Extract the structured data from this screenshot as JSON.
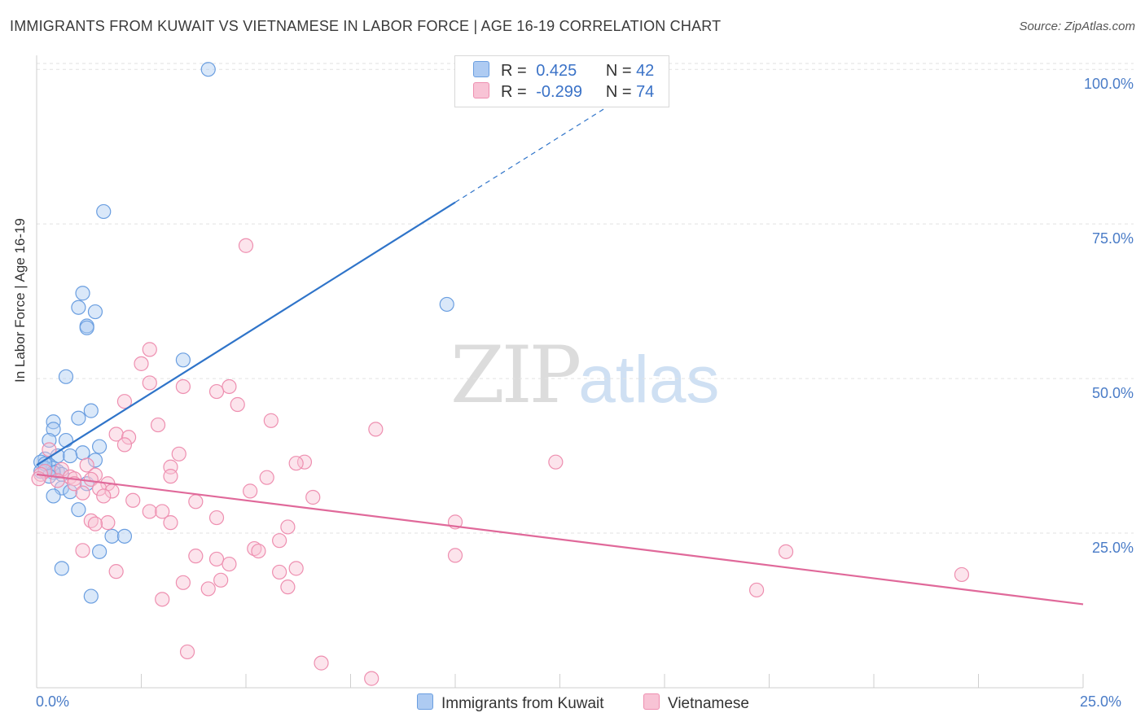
{
  "title": "IMMIGRANTS FROM KUWAIT VS VIETNAMESE IN LABOR FORCE | AGE 16-19 CORRELATION CHART",
  "source": "Source: ZipAtlas.com",
  "watermark": {
    "zip": "ZIP",
    "atlas": "atlas"
  },
  "colors": {
    "blue": "#6a9ee0",
    "blue_fill": "#aecbf2",
    "blue_line": "#2f74c9",
    "pink": "#ee8fb0",
    "pink_fill": "#f8c3d5",
    "pink_line": "#e0699a"
  },
  "legend": {
    "series1": {
      "r_label": "R =",
      "r_value": "0.425",
      "n_label": "N =",
      "n_value": "42"
    },
    "series2": {
      "r_label": "R =",
      "r_value": "-0.299",
      "n_label": "N =",
      "n_value": "74"
    }
  },
  "bottom_legend": {
    "series1": "Immigrants from Kuwait",
    "series2": "Vietnamese"
  },
  "chart_data": {
    "type": "scatter",
    "xlabel": "",
    "ylabel": "In Labor Force | Age 16-19",
    "xlim": [
      0,
      25
    ],
    "ylim": [
      0,
      102
    ],
    "x_ticks": [
      "0.0%",
      "25.0%"
    ],
    "y_ticks": [
      {
        "value": 100,
        "label": "100.0%"
      },
      {
        "value": 75,
        "label": "75.0%"
      },
      {
        "value": 50,
        "label": "50.0%"
      },
      {
        "value": 25,
        "label": "25.0%"
      }
    ],
    "grid": true,
    "series": [
      {
        "name": "Immigrants from Kuwait",
        "r": 0.425,
        "n": 42,
        "trend": {
          "x": [
            0.0,
            10.0
          ],
          "y": [
            36.0,
            78.5
          ],
          "dashed_to": [
            14.0,
            95.5
          ]
        },
        "points": [
          [
            4.1,
            100.0
          ],
          [
            1.6,
            77.0
          ],
          [
            9.8,
            62.0
          ],
          [
            1.1,
            63.8
          ],
          [
            1.0,
            61.5
          ],
          [
            1.4,
            60.8
          ],
          [
            1.2,
            58.5
          ],
          [
            1.2,
            58.2
          ],
          [
            3.5,
            53.0
          ],
          [
            0.7,
            50.3
          ],
          [
            1.3,
            44.8
          ],
          [
            1.0,
            43.6
          ],
          [
            0.4,
            43.0
          ],
          [
            0.4,
            41.8
          ],
          [
            0.3,
            40.0
          ],
          [
            0.7,
            40.0
          ],
          [
            1.5,
            39.0
          ],
          [
            0.5,
            37.5
          ],
          [
            1.1,
            38.0
          ],
          [
            0.8,
            37.5
          ],
          [
            1.4,
            36.8
          ],
          [
            0.2,
            37.0
          ],
          [
            0.1,
            36.5
          ],
          [
            0.3,
            36.0
          ],
          [
            0.4,
            35.5
          ],
          [
            0.1,
            35.0
          ],
          [
            0.2,
            35.5
          ],
          [
            0.5,
            35.0
          ],
          [
            0.6,
            34.5
          ],
          [
            0.4,
            34.8
          ],
          [
            1.2,
            33.0
          ],
          [
            0.6,
            32.3
          ],
          [
            0.8,
            31.7
          ],
          [
            0.4,
            31.0
          ],
          [
            1.0,
            28.8
          ],
          [
            1.8,
            24.5
          ],
          [
            2.1,
            24.5
          ],
          [
            1.5,
            22.0
          ],
          [
            0.6,
            19.3
          ],
          [
            1.3,
            14.8
          ],
          [
            0.2,
            36.2
          ],
          [
            0.3,
            34.2
          ]
        ]
      },
      {
        "name": "Vietnamese",
        "r": -0.299,
        "n": 74,
        "trend": {
          "x": [
            0.0,
            25.0
          ],
          "y": [
            34.5,
            13.5
          ]
        },
        "points": [
          [
            5.0,
            71.5
          ],
          [
            2.7,
            54.7
          ],
          [
            2.5,
            52.4
          ],
          [
            2.7,
            49.3
          ],
          [
            3.5,
            48.7
          ],
          [
            4.6,
            48.7
          ],
          [
            4.3,
            47.9
          ],
          [
            2.1,
            46.3
          ],
          [
            4.8,
            45.8
          ],
          [
            5.6,
            43.2
          ],
          [
            2.9,
            42.5
          ],
          [
            8.1,
            41.8
          ],
          [
            1.9,
            41.0
          ],
          [
            2.2,
            40.5
          ],
          [
            2.1,
            39.3
          ],
          [
            0.3,
            38.5
          ],
          [
            3.4,
            37.8
          ],
          [
            6.4,
            36.5
          ],
          [
            6.2,
            36.3
          ],
          [
            12.4,
            36.5
          ],
          [
            1.2,
            36.0
          ],
          [
            3.2,
            35.7
          ],
          [
            0.6,
            35.3
          ],
          [
            0.2,
            35.0
          ],
          [
            0.1,
            34.5
          ],
          [
            1.4,
            34.4
          ],
          [
            0.8,
            34.1
          ],
          [
            0.9,
            33.8
          ],
          [
            3.2,
            34.2
          ],
          [
            5.5,
            34.0
          ],
          [
            0.5,
            33.5
          ],
          [
            1.3,
            33.7
          ],
          [
            0.9,
            33.0
          ],
          [
            1.7,
            33.0
          ],
          [
            1.5,
            32.2
          ],
          [
            1.1,
            31.5
          ],
          [
            1.8,
            31.8
          ],
          [
            5.1,
            31.8
          ],
          [
            1.6,
            31.0
          ],
          [
            6.6,
            30.8
          ],
          [
            2.3,
            30.3
          ],
          [
            3.8,
            30.1
          ],
          [
            2.7,
            28.5
          ],
          [
            3.0,
            28.5
          ],
          [
            4.3,
            27.5
          ],
          [
            1.3,
            27.0
          ],
          [
            1.7,
            26.7
          ],
          [
            3.2,
            26.7
          ],
          [
            10.0,
            26.8
          ],
          [
            6.0,
            26.0
          ],
          [
            1.4,
            26.5
          ],
          [
            5.8,
            23.8
          ],
          [
            5.2,
            22.5
          ],
          [
            5.3,
            22.1
          ],
          [
            1.1,
            22.2
          ],
          [
            17.9,
            22.0
          ],
          [
            3.8,
            21.3
          ],
          [
            10.0,
            21.4
          ],
          [
            4.3,
            20.8
          ],
          [
            4.6,
            20.0
          ],
          [
            6.2,
            19.3
          ],
          [
            1.9,
            18.8
          ],
          [
            5.8,
            18.7
          ],
          [
            22.1,
            18.3
          ],
          [
            4.4,
            17.4
          ],
          [
            3.5,
            17.0
          ],
          [
            6.0,
            16.3
          ],
          [
            4.1,
            16.0
          ],
          [
            17.2,
            15.8
          ],
          [
            3.0,
            14.3
          ],
          [
            3.6,
            5.8
          ],
          [
            6.8,
            4.0
          ],
          [
            8.0,
            1.5
          ],
          [
            0.05,
            33.8
          ]
        ]
      }
    ]
  }
}
